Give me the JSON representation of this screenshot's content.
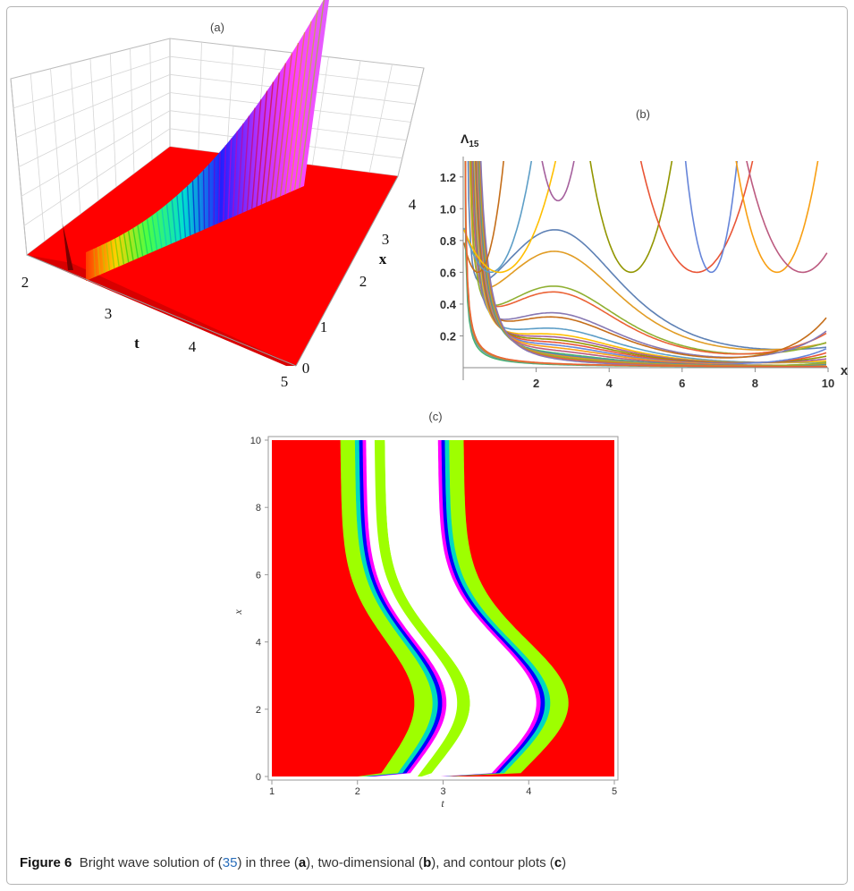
{
  "figure": {
    "caption_label": "Figure 6",
    "caption_parts": [
      "Bright wave solution of (",
      "35",
      ") in three (",
      "a",
      "), two-dimensional (",
      "b",
      "), and contour plots (",
      "c",
      ")"
    ]
  },
  "panels": {
    "a": {
      "label": "(a)"
    },
    "b": {
      "label": "(b)"
    },
    "c": {
      "label": "(c)"
    }
  },
  "chart_data": [
    {
      "panel": "a",
      "type": "surface3d",
      "x_axis": {
        "label": "x",
        "ticks": [
          "0",
          "1",
          "2",
          "3",
          "4"
        ]
      },
      "t_axis": {
        "label": "t",
        "ticks": [
          "2",
          "3",
          "4",
          "5"
        ]
      },
      "colors": {
        "background_surface": "#ff0000",
        "ridge": "rainbow hue gradient"
      }
    },
    {
      "panel": "b",
      "type": "line",
      "xlabel": "x",
      "ylabel": "Λ",
      "ylabel_subscript": "15",
      "xlim": [
        0,
        10
      ],
      "ylim": [
        0,
        1.3
      ],
      "x_ticks": [
        "2",
        "4",
        "6",
        "8",
        "10"
      ],
      "y_ticks": [
        "0.2",
        "0.4",
        "0.6",
        "0.8",
        "1.0",
        "1.2"
      ],
      "series_count": 30,
      "colors": [
        "#5e81b5",
        "#e19c24",
        "#8fb032",
        "#eb6235",
        "#8778b3",
        "#c56e1a",
        "#5d9ec7",
        "#ffbf00",
        "#a5609d",
        "#929600",
        "#e95536",
        "#6685d9",
        "#f89f13",
        "#bc5b80",
        "#47b66d"
      ]
    },
    {
      "panel": "c",
      "type": "contour",
      "xlabel": "t",
      "ylabel": "x",
      "xlim": [
        1,
        5
      ],
      "ylim": [
        0,
        10
      ],
      "x_ticks": [
        "1",
        "2",
        "3",
        "4",
        "5"
      ],
      "y_ticks": [
        "0",
        "2",
        "4",
        "6",
        "8",
        "10"
      ],
      "band_colors": [
        "#ff0000",
        "#9eff00",
        "#00d8c0",
        "#0000ff",
        "#ff00ff",
        "#ffffff"
      ]
    }
  ]
}
